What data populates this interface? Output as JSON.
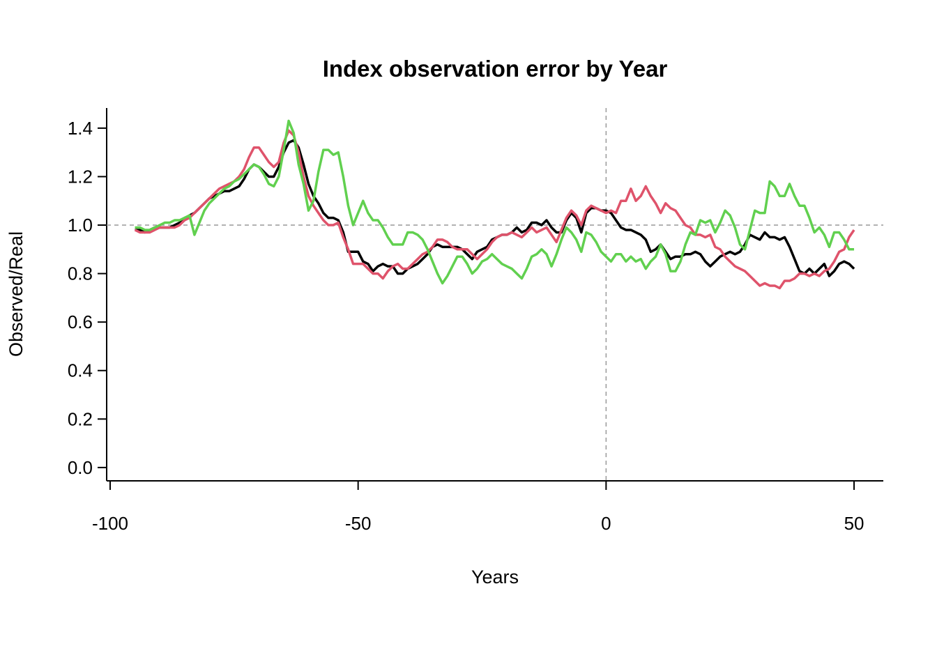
{
  "chart_data": {
    "type": "line",
    "title": "Index observation error by Year",
    "x_label": "Years",
    "y_label": "Observed/Real",
    "x": [
      -95,
      -94,
      -93,
      -92,
      -91,
      -90,
      -89,
      -88,
      -87,
      -86,
      -85,
      -84,
      -83,
      -82,
      -81,
      -80,
      -79,
      -78,
      -77,
      -76,
      -75,
      -74,
      -73,
      -72,
      -71,
      -70,
      -69,
      -68,
      -67,
      -66,
      -65,
      -64,
      -63,
      -62,
      -61,
      -60,
      -59,
      -58,
      -57,
      -56,
      -55,
      -54,
      -53,
      -52,
      -51,
      -50,
      -49,
      -48,
      -47,
      -46,
      -45,
      -44,
      -43,
      -42,
      -41,
      -40,
      -39,
      -38,
      -37,
      -36,
      -35,
      -34,
      -33,
      -32,
      -31,
      -30,
      -29,
      -28,
      -27,
      -26,
      -25,
      -24,
      -23,
      -22,
      -21,
      -20,
      -19,
      -18,
      -17,
      -16,
      -15,
      -14,
      -13,
      -12,
      -11,
      -10,
      -9,
      -8,
      -7,
      -6,
      -5,
      -4,
      -3,
      -2,
      -1,
      0,
      1,
      2,
      3,
      4,
      5,
      6,
      7,
      8,
      9,
      10,
      11,
      12,
      13,
      14,
      15,
      16,
      17,
      18,
      19,
      20,
      21,
      22,
      23,
      24,
      25,
      26,
      27,
      28,
      29,
      30,
      31,
      32,
      33,
      34,
      35,
      36,
      37,
      38,
      39,
      40,
      41,
      42,
      43,
      44,
      45,
      46,
      47,
      48,
      49,
      50
    ],
    "series": [
      {
        "color": "#000000",
        "values": [
          0.98,
          0.98,
          0.97,
          0.98,
          0.99,
          0.99,
          0.99,
          0.99,
          1.0,
          1.01,
          1.02,
          1.04,
          1.05,
          1.07,
          1.09,
          1.11,
          1.12,
          1.13,
          1.14,
          1.14,
          1.15,
          1.16,
          1.19,
          1.23,
          1.25,
          1.24,
          1.22,
          1.2,
          1.2,
          1.24,
          1.3,
          1.34,
          1.35,
          1.32,
          1.25,
          1.17,
          1.12,
          1.09,
          1.05,
          1.03,
          1.03,
          1.02,
          0.97,
          0.89,
          0.89,
          0.89,
          0.85,
          0.84,
          0.81,
          0.83,
          0.84,
          0.83,
          0.83,
          0.8,
          0.8,
          0.82,
          0.83,
          0.84,
          0.86,
          0.88,
          0.91,
          0.92,
          0.91,
          0.91,
          0.91,
          0.91,
          0.9,
          0.88,
          0.86,
          0.89,
          0.9,
          0.91,
          0.94,
          0.95,
          0.96,
          0.96,
          0.97,
          0.99,
          0.97,
          0.98,
          1.01,
          1.01,
          1.0,
          1.02,
          0.99,
          0.97,
          0.97,
          1.02,
          1.05,
          1.03,
          0.97,
          1.05,
          1.07,
          1.07,
          1.06,
          1.06,
          1.05,
          1.02,
          0.99,
          0.98,
          0.98,
          0.97,
          0.96,
          0.94,
          0.89,
          0.9,
          0.92,
          0.89,
          0.86,
          0.87,
          0.87,
          0.88,
          0.88,
          0.89,
          0.88,
          0.85,
          0.83,
          0.85,
          0.87,
          0.88,
          0.89,
          0.88,
          0.89,
          0.92,
          0.96,
          0.95,
          0.94,
          0.97,
          0.95,
          0.95,
          0.94,
          0.95,
          0.91,
          0.86,
          0.81,
          0.8,
          0.82,
          0.8,
          0.82,
          0.84,
          0.79,
          0.81,
          0.84,
          0.85,
          0.84,
          0.82
        ]
      },
      {
        "color": "#DF536B",
        "values": [
          0.98,
          0.97,
          0.97,
          0.97,
          0.98,
          0.99,
          0.99,
          0.99,
          0.99,
          1.0,
          1.02,
          1.03,
          1.05,
          1.07,
          1.09,
          1.11,
          1.13,
          1.15,
          1.16,
          1.17,
          1.18,
          1.2,
          1.23,
          1.28,
          1.32,
          1.32,
          1.29,
          1.26,
          1.24,
          1.26,
          1.34,
          1.39,
          1.37,
          1.3,
          1.2,
          1.12,
          1.08,
          1.05,
          1.02,
          1.0,
          1.0,
          1.01,
          0.95,
          0.9,
          0.84,
          0.84,
          0.84,
          0.82,
          0.8,
          0.8,
          0.78,
          0.81,
          0.83,
          0.84,
          0.82,
          0.82,
          0.84,
          0.86,
          0.88,
          0.89,
          0.91,
          0.94,
          0.94,
          0.93,
          0.91,
          0.9,
          0.9,
          0.9,
          0.88,
          0.86,
          0.88,
          0.9,
          0.93,
          0.95,
          0.96,
          0.96,
          0.97,
          0.96,
          0.95,
          0.97,
          0.99,
          0.97,
          0.98,
          0.99,
          0.96,
          0.93,
          0.98,
          1.03,
          1.06,
          1.04,
          1.0,
          1.06,
          1.08,
          1.07,
          1.06,
          1.05,
          1.06,
          1.05,
          1.1,
          1.1,
          1.15,
          1.1,
          1.12,
          1.16,
          1.12,
          1.09,
          1.05,
          1.09,
          1.07,
          1.06,
          1.03,
          1.0,
          0.99,
          0.96,
          0.96,
          0.95,
          0.96,
          0.91,
          0.9,
          0.87,
          0.85,
          0.83,
          0.82,
          0.81,
          0.79,
          0.77,
          0.75,
          0.76,
          0.75,
          0.75,
          0.74,
          0.77,
          0.77,
          0.78,
          0.8,
          0.8,
          0.79,
          0.8,
          0.79,
          0.81,
          0.82,
          0.85,
          0.89,
          0.9,
          0.95,
          0.98
        ]
      },
      {
        "color": "#61D04F",
        "values": [
          0.99,
          0.99,
          0.98,
          0.98,
          0.99,
          1.0,
          1.01,
          1.01,
          1.02,
          1.02,
          1.03,
          1.04,
          0.96,
          1.01,
          1.06,
          1.09,
          1.11,
          1.13,
          1.15,
          1.16,
          1.18,
          1.19,
          1.21,
          1.23,
          1.25,
          1.24,
          1.21,
          1.17,
          1.16,
          1.2,
          1.31,
          1.43,
          1.38,
          1.25,
          1.17,
          1.06,
          1.1,
          1.22,
          1.31,
          1.31,
          1.29,
          1.3,
          1.2,
          1.08,
          1.0,
          1.05,
          1.1,
          1.05,
          1.02,
          1.02,
          0.99,
          0.95,
          0.92,
          0.92,
          0.92,
          0.97,
          0.97,
          0.96,
          0.94,
          0.9,
          0.85,
          0.8,
          0.76,
          0.79,
          0.83,
          0.87,
          0.87,
          0.84,
          0.8,
          0.82,
          0.85,
          0.86,
          0.88,
          0.86,
          0.84,
          0.83,
          0.82,
          0.8,
          0.78,
          0.82,
          0.87,
          0.88,
          0.9,
          0.88,
          0.83,
          0.88,
          0.94,
          0.99,
          0.97,
          0.94,
          0.89,
          0.97,
          0.96,
          0.93,
          0.89,
          0.87,
          0.85,
          0.88,
          0.88,
          0.85,
          0.87,
          0.85,
          0.86,
          0.82,
          0.85,
          0.87,
          0.92,
          0.88,
          0.81,
          0.81,
          0.85,
          0.92,
          0.97,
          0.96,
          1.02,
          1.01,
          1.02,
          0.97,
          1.01,
          1.06,
          1.04,
          0.99,
          0.92,
          0.9,
          0.98,
          1.06,
          1.05,
          1.05,
          1.18,
          1.16,
          1.12,
          1.12,
          1.17,
          1.12,
          1.08,
          1.08,
          1.03,
          0.97,
          0.99,
          0.96,
          0.91,
          0.97,
          0.97,
          0.94,
          0.9,
          0.9
        ]
      }
    ],
    "xlim": [
      -100.7,
      55.9
    ],
    "ylim": [
      -0.055,
      1.483
    ],
    "xticks": [
      -100,
      -50,
      0,
      50
    ],
    "yticks": [
      {
        "value": 0,
        "label": "0.0"
      },
      {
        "value": 0.2,
        "label": "0.2"
      },
      {
        "value": 0.4,
        "label": "0.4"
      },
      {
        "value": 0.6,
        "label": "0.6"
      },
      {
        "value": 0.8,
        "label": "0.8"
      },
      {
        "value": 1,
        "label": "1.0"
      },
      {
        "value": 1.2,
        "label": "1.2"
      },
      {
        "value": 1.4,
        "label": "1.4"
      }
    ],
    "reference_lines": {
      "x": 0,
      "y": 1
    }
  }
}
